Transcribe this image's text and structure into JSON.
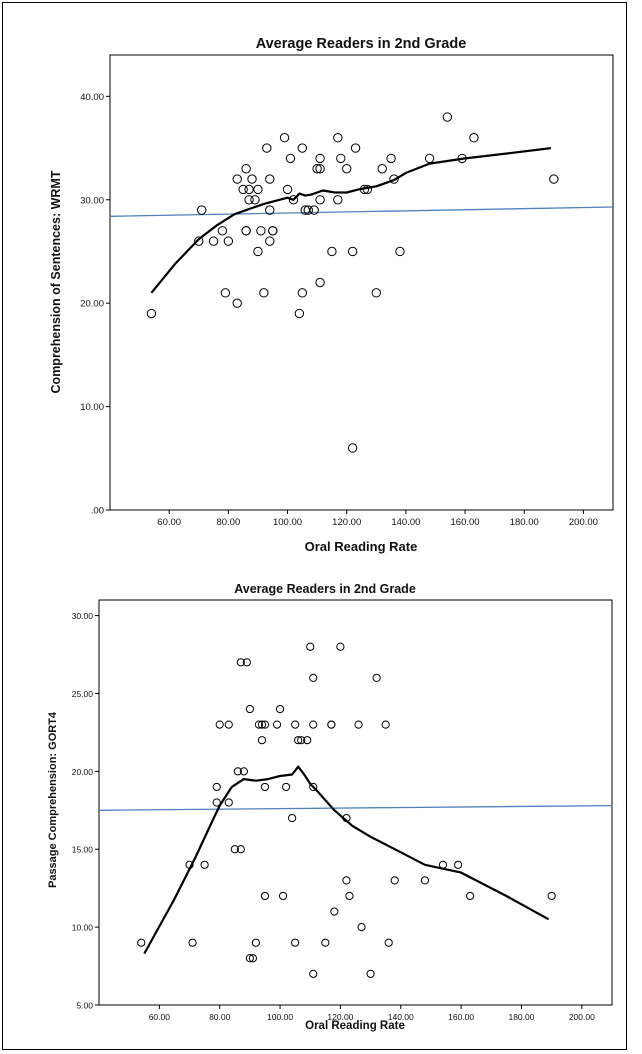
{
  "chart_data": [
    {
      "type": "scatter",
      "title": "Average Readers in 2nd Grade",
      "xlabel": "Oral Reading Rate",
      "ylabel": "Comprehension of Sentences: WRMT",
      "xlim": [
        40,
        210
      ],
      "ylim": [
        0,
        44
      ],
      "x_ticks": [
        "60.00",
        "80.00",
        "100.00",
        "120.00",
        "140.00",
        "160.00",
        "180.00",
        "200.00"
      ],
      "x_tick_values": [
        60,
        80,
        100,
        120,
        140,
        160,
        180,
        200
      ],
      "y_ticks": [
        ".00",
        "10.00",
        "20.00",
        "30.00",
        "40.00"
      ],
      "y_tick_values": [
        0,
        10,
        20,
        30,
        40
      ],
      "grid": false,
      "points": [
        [
          54,
          19
        ],
        [
          71,
          29
        ],
        [
          70,
          26
        ],
        [
          75,
          26
        ],
        [
          78,
          27
        ],
        [
          79,
          21
        ],
        [
          80,
          26
        ],
        [
          83,
          32
        ],
        [
          83,
          20
        ],
        [
          85,
          31
        ],
        [
          86,
          33
        ],
        [
          86,
          27
        ],
        [
          86,
          27
        ],
        [
          87,
          31
        ],
        [
          87,
          30
        ],
        [
          88,
          32
        ],
        [
          89,
          30
        ],
        [
          90,
          31
        ],
        [
          90,
          25
        ],
        [
          91,
          27
        ],
        [
          92,
          21
        ],
        [
          93,
          35
        ],
        [
          94,
          29
        ],
        [
          94,
          26
        ],
        [
          94,
          32
        ],
        [
          95,
          27
        ],
        [
          95,
          27
        ],
        [
          99,
          36
        ],
        [
          100,
          31
        ],
        [
          101,
          34
        ],
        [
          102,
          30
        ],
        [
          104,
          19
        ],
        [
          105,
          35
        ],
        [
          105,
          21
        ],
        [
          106,
          29
        ],
        [
          107,
          29
        ],
        [
          109,
          29
        ],
        [
          110,
          33
        ],
        [
          111,
          33
        ],
        [
          111,
          34
        ],
        [
          111,
          30
        ],
        [
          111,
          22
        ],
        [
          115,
          25
        ],
        [
          117,
          30
        ],
        [
          117,
          36
        ],
        [
          118,
          34
        ],
        [
          120,
          33
        ],
        [
          122,
          25
        ],
        [
          123,
          35
        ],
        [
          126,
          31
        ],
        [
          127,
          31
        ],
        [
          130,
          21
        ],
        [
          132,
          33
        ],
        [
          135,
          34
        ],
        [
          136,
          32
        ],
        [
          138,
          25
        ],
        [
          148,
          34
        ],
        [
          154,
          38
        ],
        [
          159,
          34
        ],
        [
          163,
          36
        ],
        [
          190,
          32
        ],
        [
          122,
          6
        ]
      ],
      "fit_line": {
        "type": "linear",
        "color": "#4f81bd",
        "x": [
          40,
          210
        ],
        "y": [
          28.4,
          29.3
        ]
      },
      "loess": {
        "color": "#000000",
        "x": [
          54,
          62,
          70,
          76,
          82,
          88,
          92,
          96,
          100,
          102,
          104,
          106,
          108,
          112,
          116,
          120,
          124,
          130,
          136,
          140,
          148,
          160,
          175,
          189
        ],
        "y": [
          21,
          23.8,
          26.2,
          27.5,
          28.6,
          29.2,
          29.6,
          29.9,
          30.2,
          30.0,
          30.6,
          30.4,
          30.5,
          30.9,
          30.7,
          30.7,
          31.0,
          31.3,
          31.9,
          32.6,
          33.5,
          34.0,
          34.5,
          35.0
        ]
      }
    },
    {
      "type": "scatter",
      "title": "Average Readers in 2nd Grade",
      "xlabel": "Oral Reading Rate",
      "ylabel": "Passage Comprehension: GORT4",
      "xlim": [
        40,
        210
      ],
      "ylim": [
        5,
        31
      ],
      "x_ticks": [
        "60.00",
        "80.00",
        "100.00",
        "120.00",
        "140.00",
        "160.00",
        "180.00",
        "200.00"
      ],
      "x_tick_values": [
        60,
        80,
        100,
        120,
        140,
        160,
        180,
        200
      ],
      "y_ticks": [
        "5.00",
        "10.00",
        "15.00",
        "20.00",
        "25.00",
        "30.00"
      ],
      "y_tick_values": [
        5,
        10,
        15,
        20,
        25,
        30
      ],
      "grid": false,
      "points": [
        [
          54,
          9
        ],
        [
          70,
          14
        ],
        [
          71,
          9
        ],
        [
          75,
          14
        ],
        [
          79,
          19
        ],
        [
          79,
          18
        ],
        [
          80,
          23
        ],
        [
          83,
          23
        ],
        [
          83,
          18
        ],
        [
          85,
          15
        ],
        [
          86,
          20
        ],
        [
          87,
          27
        ],
        [
          87,
          15
        ],
        [
          88,
          20
        ],
        [
          89,
          27
        ],
        [
          90,
          24
        ],
        [
          90,
          8
        ],
        [
          91,
          8
        ],
        [
          92,
          9
        ],
        [
          93,
          23
        ],
        [
          94,
          22
        ],
        [
          94,
          23
        ],
        [
          95,
          23
        ],
        [
          95,
          19
        ],
        [
          95,
          12
        ],
        [
          99,
          23
        ],
        [
          100,
          24
        ],
        [
          101,
          12
        ],
        [
          102,
          19
        ],
        [
          104,
          17
        ],
        [
          105,
          23
        ],
        [
          105,
          9
        ],
        [
          106,
          22
        ],
        [
          107,
          22
        ],
        [
          109,
          22
        ],
        [
          110,
          28
        ],
        [
          111,
          26
        ],
        [
          111,
          23
        ],
        [
          111,
          19
        ],
        [
          111,
          7
        ],
        [
          115,
          9
        ],
        [
          117,
          23
        ],
        [
          117,
          23
        ],
        [
          118,
          11
        ],
        [
          120,
          28
        ],
        [
          122,
          13
        ],
        [
          122,
          17
        ],
        [
          123,
          12
        ],
        [
          126,
          23
        ],
        [
          127,
          10
        ],
        [
          130,
          7
        ],
        [
          132,
          26
        ],
        [
          135,
          23
        ],
        [
          136,
          9
        ],
        [
          138,
          13
        ],
        [
          148,
          13
        ],
        [
          154,
          14
        ],
        [
          159,
          14
        ],
        [
          163,
          12
        ],
        [
          190,
          12
        ]
      ],
      "fit_line": {
        "type": "linear",
        "color": "#4f81bd",
        "x": [
          40,
          210
        ],
        "y": [
          17.5,
          17.8
        ]
      },
      "loess": {
        "color": "#000000",
        "x": [
          55,
          65,
          72,
          78,
          80,
          84,
          88,
          92,
          96,
          100,
          104,
          106,
          108,
          110,
          112,
          118,
          124,
          130,
          140,
          148,
          160,
          175,
          189
        ],
        "y": [
          8.3,
          11.8,
          14.5,
          17.0,
          17.8,
          19.0,
          19.5,
          19.4,
          19.5,
          19.7,
          19.8,
          20.3,
          19.8,
          19.2,
          18.8,
          17.5,
          16.5,
          15.8,
          14.8,
          14.0,
          13.5,
          12.0,
          10.5
        ]
      }
    }
  ]
}
